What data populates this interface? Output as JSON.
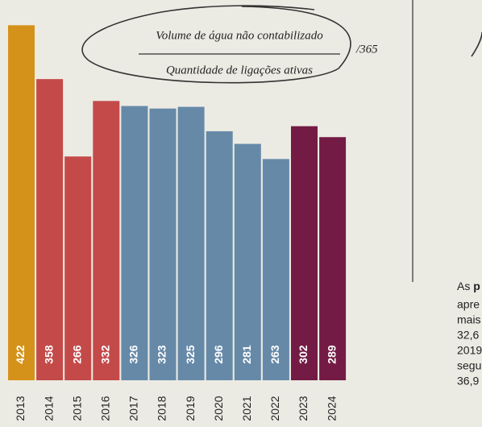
{
  "chart_data": {
    "type": "bar",
    "categories": [
      "2013",
      "2014",
      "2015",
      "2016",
      "2017",
      "2018",
      "2019",
      "2020",
      "2021",
      "2022",
      "2023",
      "2024"
    ],
    "values": [
      422,
      358,
      266,
      332,
      326,
      323,
      325,
      296,
      281,
      263,
      302,
      289
    ],
    "colors": [
      "#d4921a",
      "#c44a4a",
      "#c44a4a",
      "#c44a4a",
      "#6689a8",
      "#6689a8",
      "#6689a8",
      "#6689a8",
      "#6689a8",
      "#6689a8",
      "#731b45",
      "#731b45"
    ],
    "ylim": [
      0,
      452
    ]
  },
  "annotation": {
    "numerator": "Volume de água não contabilizado",
    "denominator": "Quantidade de ligações ativas",
    "divisor": "/365"
  },
  "side_text": {
    "first": "As",
    "first_bold": "p",
    "lines": [
      "apre",
      "mais",
      "32,6",
      "2019",
      "segu",
      "36,9"
    ]
  }
}
